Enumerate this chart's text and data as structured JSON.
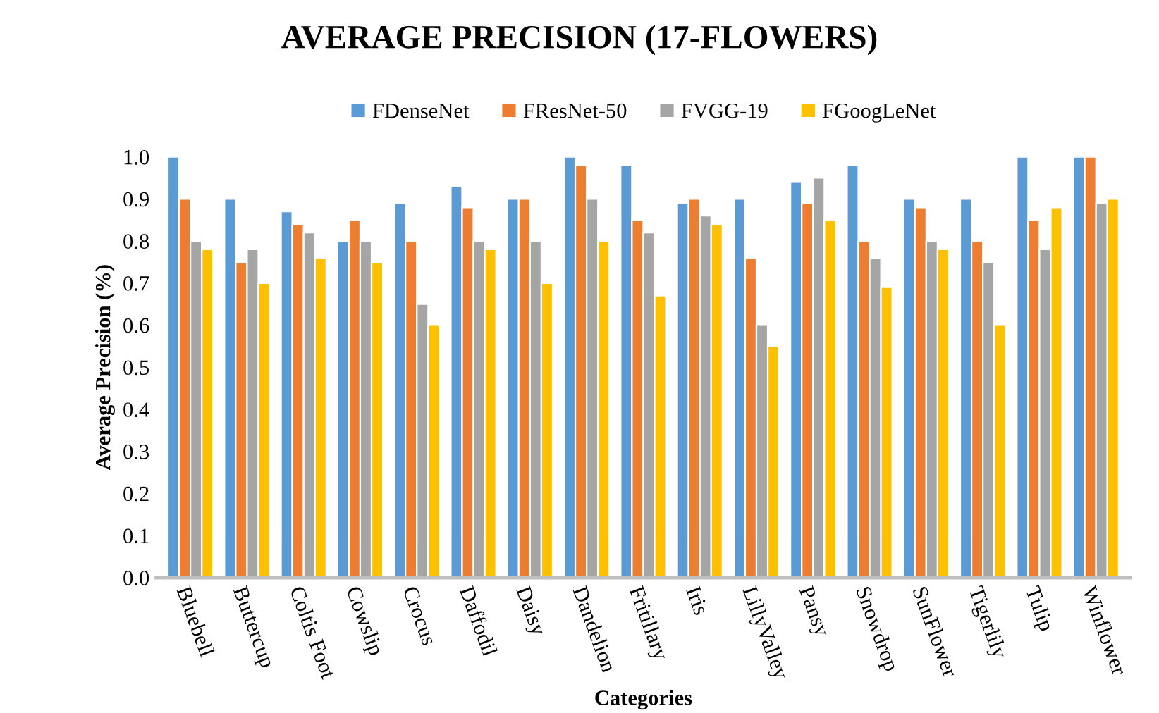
{
  "chart_data": {
    "type": "bar",
    "title": "AVERAGE PRECISION (17-FLOWERS)",
    "xlabel": "Categories",
    "ylabel": "Average Precision (%)",
    "categories": [
      "Bluebell",
      "Buttercup",
      "Coltis Foot",
      "Cowslip",
      "Crocus",
      "Daffodil",
      "Daisy",
      "Dandelion",
      "Fritillary",
      "Iris",
      "LillyValley",
      "Pansy",
      "Snowdrop",
      "SunFlower",
      "Tigerlily",
      "Tulip",
      "Winflower"
    ],
    "series": [
      {
        "name": "FDenseNet",
        "color": "#5b9bd5",
        "values": [
          1.0,
          0.9,
          0.87,
          0.8,
          0.89,
          0.93,
          0.9,
          1.0,
          0.98,
          0.89,
          0.9,
          0.94,
          0.98,
          0.9,
          0.9,
          1.0,
          1.0
        ]
      },
      {
        "name": "FResNet-50",
        "color": "#ed7d31",
        "values": [
          0.9,
          0.75,
          0.84,
          0.85,
          0.8,
          0.88,
          0.9,
          0.98,
          0.85,
          0.9,
          0.76,
          0.89,
          0.8,
          0.88,
          0.8,
          0.85,
          1.0
        ]
      },
      {
        "name": "FVGG-19",
        "color": "#a5a5a5",
        "values": [
          0.8,
          0.78,
          0.82,
          0.8,
          0.65,
          0.8,
          0.8,
          0.9,
          0.82,
          0.86,
          0.6,
          0.95,
          0.76,
          0.8,
          0.75,
          0.78,
          0.89
        ]
      },
      {
        "name": "FGoogLeNet",
        "color": "#ffc000",
        "values": [
          0.78,
          0.7,
          0.76,
          0.75,
          0.6,
          0.78,
          0.7,
          0.8,
          0.67,
          0.84,
          0.55,
          0.85,
          0.69,
          0.78,
          0.6,
          0.88,
          0.9
        ]
      }
    ],
    "ylim": [
      0,
      1.0
    ],
    "yticks": [
      {
        "value": 0,
        "label": "0.0"
      },
      {
        "value": 0.1,
        "label": "0.1"
      },
      {
        "value": 0.2,
        "label": "0.2"
      },
      {
        "value": 0.3,
        "label": "0.3"
      },
      {
        "value": 0.4,
        "label": "0.4"
      },
      {
        "value": 0.5,
        "label": "0.5"
      },
      {
        "value": 0.6,
        "label": "0.6"
      },
      {
        "value": 0.7,
        "label": "0.7"
      },
      {
        "value": 0.8,
        "label": "0.8"
      },
      {
        "value": 0.9,
        "label": "0.9"
      },
      {
        "value": 1.0,
        "label": "1.0"
      }
    ],
    "grid": false,
    "legend": "top"
  }
}
